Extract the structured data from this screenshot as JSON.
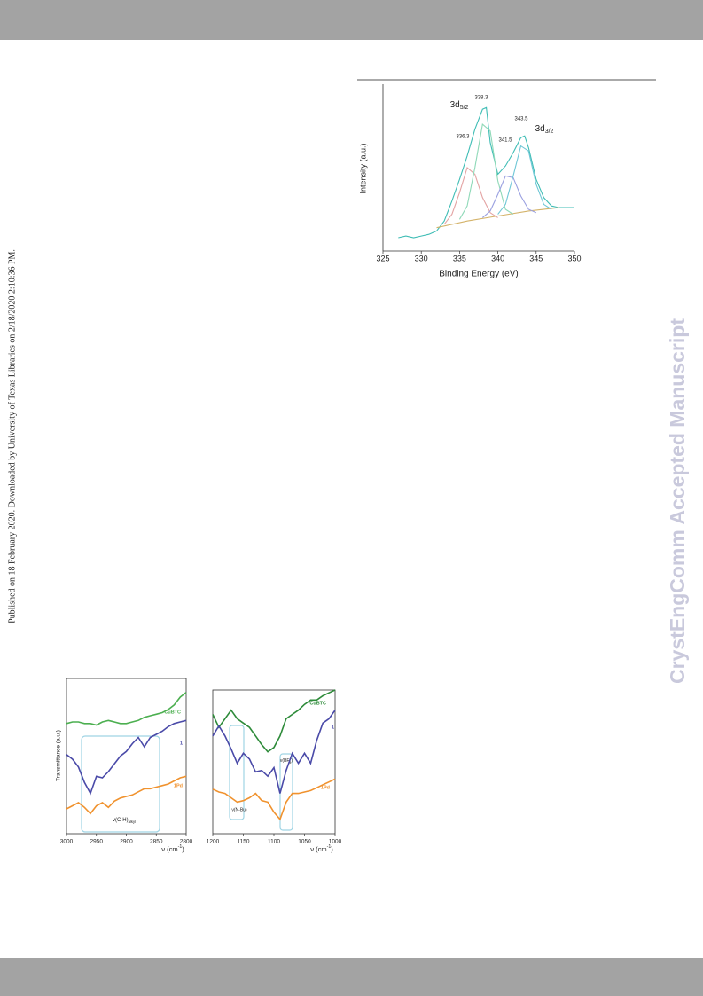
{
  "page": {
    "sidebar": "Published on 18 February 2020. Downloaded by University of Texas Libraries on 2/18/2020 2:10:36 PM.",
    "watermark": "CrystEngComm Accepted Manuscript"
  },
  "chart_data": [
    {
      "type": "line",
      "xlabel": "Binding Energy (eV)",
      "ylabel": "Intensity (a.u.)",
      "xlim": [
        325,
        350
      ],
      "ylim": [
        0,
        100
      ],
      "xticks": [
        325,
        330,
        335,
        340,
        345,
        350
      ],
      "annotations": [
        {
          "text": "3d",
          "sub": "5/2"
        },
        "338.3",
        "336.3",
        "341.5",
        "343.5",
        {
          "text": "3d",
          "sub": "3/2"
        }
      ],
      "series": [
        {
          "color": "#3fbdb5",
          "x": [
            327,
            328,
            329,
            330,
            331,
            332,
            333,
            334,
            335,
            336,
            337,
            338,
            338.5,
            339,
            340,
            341,
            342,
            343,
            343.5,
            344,
            345,
            346,
            347,
            348,
            349,
            350
          ],
          "values": [
            8,
            9,
            8,
            9,
            10,
            12,
            18,
            30,
            43,
            57,
            73,
            85,
            86,
            65,
            46,
            51,
            59,
            68,
            69,
            62,
            43,
            32,
            27,
            26,
            26,
            26
          ]
        },
        {
          "color": "#d4b36a",
          "x": [
            332,
            336,
            340,
            344,
            348
          ],
          "values": [
            14,
            18,
            21,
            24,
            26
          ]
        },
        {
          "color": "#e3a3a3",
          "x": [
            333,
            334,
            335,
            336,
            337,
            338,
            339,
            340
          ],
          "values": [
            16,
            22,
            35,
            50,
            46,
            32,
            23,
            20
          ]
        },
        {
          "color": "#8fd9b8",
          "x": [
            335,
            336,
            337,
            338,
            339,
            340,
            341,
            342
          ],
          "values": [
            19,
            27,
            50,
            76,
            72,
            42,
            25,
            22
          ]
        },
        {
          "color": "#9aa0e0",
          "x": [
            338,
            339,
            340,
            341,
            342,
            343,
            344,
            345
          ],
          "values": [
            20,
            24,
            34,
            45,
            44,
            33,
            25,
            23
          ]
        },
        {
          "color": "#6fc7d6",
          "x": [
            340,
            341,
            342,
            343,
            344,
            345,
            346,
            347
          ],
          "values": [
            22,
            28,
            45,
            63,
            60,
            40,
            28,
            25
          ]
        }
      ]
    },
    {
      "type": "line",
      "xlabel": {
        "text": "ν (cm",
        "sup": "-1",
        "tail": ")"
      },
      "ylabel": "Transmittance (a.u.)",
      "xlim": [
        3000,
        2800
      ],
      "ylim": [
        0,
        100
      ],
      "xticks": [
        3000,
        2950,
        2900,
        2850,
        2800
      ],
      "x": [
        3000,
        2990,
        2980,
        2970,
        2960,
        2950,
        2940,
        2930,
        2920,
        2910,
        2900,
        2890,
        2880,
        2870,
        2860,
        2850,
        2840,
        2830,
        2820,
        2810,
        2800
      ],
      "annotations": [
        {
          "text": "ν(C-H)",
          "sub": "alkyl"
        }
      ],
      "series": [
        {
          "name": "CuBTC",
          "color": "#4caf50",
          "values": [
            71,
            72,
            72,
            71,
            71,
            70,
            72,
            73,
            72,
            71,
            71,
            72,
            73,
            75,
            76,
            77,
            78,
            80,
            83,
            88,
            91
          ]
        },
        {
          "name": "1",
          "color": "#4a4aa8",
          "values": [
            51,
            48,
            43,
            33,
            26,
            37,
            36,
            40,
            45,
            50,
            53,
            58,
            62,
            56,
            62,
            64,
            66,
            69,
            71,
            72,
            73
          ]
        },
        {
          "name": "1Pd",
          "color": "#f0922e",
          "values": [
            16,
            18,
            20,
            17,
            13,
            18,
            20,
            17,
            21,
            23,
            24,
            25,
            27,
            29,
            29,
            30,
            31,
            32,
            34,
            36,
            37
          ]
        }
      ]
    },
    {
      "type": "line",
      "xlabel": {
        "text": "ν (cm",
        "sup": "-1",
        "tail": ")"
      },
      "xlim": [
        1200,
        1000
      ],
      "ylim": [
        0,
        100
      ],
      "xticks": [
        1200,
        1150,
        1100,
        1050,
        1000
      ],
      "x": [
        1200,
        1190,
        1180,
        1170,
        1160,
        1150,
        1140,
        1130,
        1120,
        1110,
        1100,
        1090,
        1080,
        1070,
        1060,
        1050,
        1040,
        1030,
        1020,
        1010,
        1000
      ],
      "annotations": [
        "ν(N-Bu)",
        {
          "text": "ν(BF",
          "sub": "4",
          "tail": ")"
        }
      ],
      "series": [
        {
          "name": "CuBTC",
          "color": "#2e8b3a",
          "values": [
            83,
            74,
            80,
            86,
            80,
            77,
            74,
            68,
            62,
            57,
            60,
            68,
            80,
            83,
            86,
            90,
            93,
            93,
            96,
            98,
            100
          ]
        },
        {
          "name": "1",
          "color": "#4a4aa8",
          "values": [
            68,
            75,
            68,
            59,
            49,
            56,
            52,
            43,
            44,
            40,
            46,
            28,
            44,
            56,
            49,
            56,
            49,
            65,
            77,
            80,
            86
          ]
        },
        {
          "name": "1Pd",
          "color": "#f0922e",
          "values": [
            31,
            29,
            28,
            25,
            22,
            23,
            25,
            28,
            23,
            22,
            15,
            10,
            22,
            28,
            28,
            29,
            30,
            32,
            34,
            36,
            38
          ]
        }
      ]
    }
  ]
}
